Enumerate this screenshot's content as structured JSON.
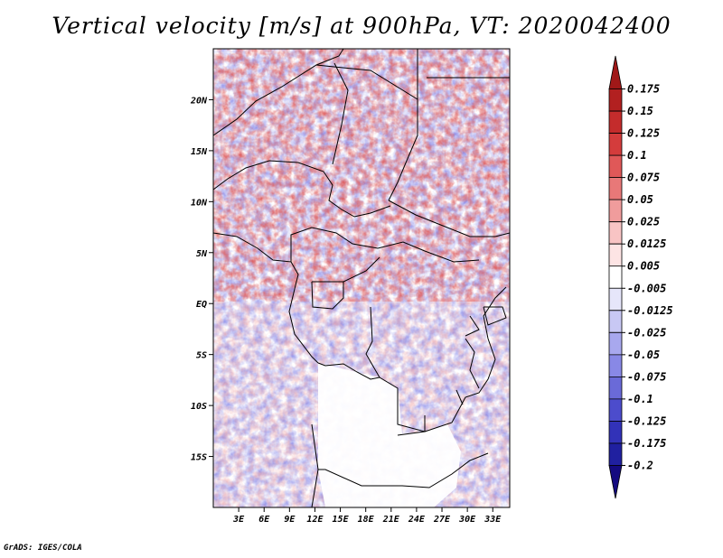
{
  "title": "Vertical velocity [m/s] at 900hPa, VT: 2020042400",
  "footer": "GrADS: IGES/COLA",
  "map": {
    "lon_range": [
      0,
      35
    ],
    "lat_range": [
      -20,
      25
    ],
    "lon_ticks": [
      {
        "value": 3,
        "label": "3E"
      },
      {
        "value": 6,
        "label": "6E"
      },
      {
        "value": 9,
        "label": "9E"
      },
      {
        "value": 12,
        "label": "12E"
      },
      {
        "value": 15,
        "label": "15E"
      },
      {
        "value": 18,
        "label": "18E"
      },
      {
        "value": 21,
        "label": "21E"
      },
      {
        "value": 24,
        "label": "24E"
      },
      {
        "value": 27,
        "label": "27E"
      },
      {
        "value": 30,
        "label": "30E"
      },
      {
        "value": 33,
        "label": "33E"
      }
    ],
    "lat_ticks": [
      {
        "value": 20,
        "label": "20N"
      },
      {
        "value": 15,
        "label": "15N"
      },
      {
        "value": 10,
        "label": "10N"
      },
      {
        "value": 5,
        "label": "5N"
      },
      {
        "value": 0,
        "label": "EQ"
      },
      {
        "value": -5,
        "label": "5S"
      },
      {
        "value": -10,
        "label": "10S"
      },
      {
        "value": -15,
        "label": "15S"
      }
    ],
    "field_description": "Shaded vertical velocity field, noisy red/blue pattern; mostly white (near zero) over southern Africa.",
    "colors": {
      "positive": "#c0282a",
      "negative": "#3030c0",
      "border": "#000000"
    }
  },
  "colorbar": {
    "labels": [
      "0.175",
      "0.15",
      "0.125",
      "0.1",
      "0.075",
      "0.05",
      "0.025",
      "0.0125",
      "0.005",
      "-0.005",
      "-0.0125",
      "-0.025",
      "-0.05",
      "-0.075",
      "-0.1",
      "-0.125",
      "-0.175",
      "-0.2"
    ],
    "colors": [
      "#a01818",
      "#b22020",
      "#c42c2c",
      "#d43c3c",
      "#e05858",
      "#e87878",
      "#f09c9c",
      "#f8c4c4",
      "#fde4e4",
      "#ffffff",
      "#e6e6fa",
      "#c8c8f4",
      "#a8a8ee",
      "#8888e6",
      "#6a6ad8",
      "#4c4ccc",
      "#3232b8",
      "#2020a0",
      "#140a80"
    ]
  }
}
